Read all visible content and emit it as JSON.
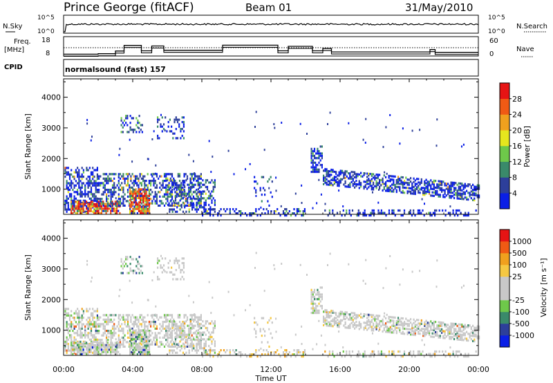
{
  "header": {
    "station": "Prince George (fitACF)",
    "beam": "Beam 01",
    "date": "31/May/2010"
  },
  "top_strips": {
    "noise": {
      "left_label": "N.Sky",
      "left_ticks": [
        "10^5",
        "10^0"
      ],
      "right_label": "N.Search",
      "right_ticks": [
        "10^5",
        "10^0"
      ]
    },
    "freq": {
      "left_label_1": "Freq.",
      "left_label_2": "[MHz]",
      "left_ticks": [
        "18",
        "8"
      ],
      "right_label": "Nave",
      "right_ticks": [
        "60",
        "0"
      ]
    },
    "cpid_label": "CPID",
    "cpid_value": "normalsound (fast) 157"
  },
  "colors": {
    "power_scale": [
      "#0a1fe6",
      "#2d3f9a",
      "#3a8a6a",
      "#6ec84a",
      "#e6e61e",
      "#f0a01e",
      "#f05a14",
      "#e61414"
    ],
    "velocity_scale": [
      "#e61414",
      "#f05a14",
      "#f0a01e",
      "#f5c842",
      "#c8c8c8",
      "#c8c8c8",
      "#6ec84a",
      "#3a8a6a",
      "#2d3f9a",
      "#0a1fe6"
    ]
  },
  "chart_data": [
    {
      "type": "heatmap",
      "name": "power",
      "xlabel": "",
      "ylabel": "Slant Range [km]",
      "x_ticks": [
        "00:00",
        "04:00",
        "08:00",
        "12:00",
        "16:00",
        "20:00",
        "00:00"
      ],
      "y_ticks": [
        "1000",
        "2000",
        "3000",
        "4000"
      ],
      "xlim": [
        0,
        24
      ],
      "ylim": [
        180,
        4600
      ],
      "colorbar_label": "Power [dB]",
      "colorbar_ticks": [
        "4",
        "8",
        "12",
        "16",
        "20",
        "24",
        "28"
      ],
      "colorbar_range": [
        0,
        32
      ]
    },
    {
      "type": "heatmap",
      "name": "velocity",
      "xlabel": "Time UT",
      "ylabel": "Slant Range [km]",
      "x_ticks": [
        "00:00",
        "04:00",
        "08:00",
        "12:00",
        "16:00",
        "20:00",
        "00:00"
      ],
      "y_ticks": [
        "1000",
        "2000",
        "3000",
        "4000"
      ],
      "xlim": [
        0,
        24
      ],
      "ylim": [
        180,
        4600
      ],
      "colorbar_label": "Velocity [m s⁻¹]",
      "colorbar_ticks": [
        "1000",
        "500",
        "100",
        "25",
        "-25",
        "-100",
        "-500",
        "-1000"
      ]
    }
  ]
}
